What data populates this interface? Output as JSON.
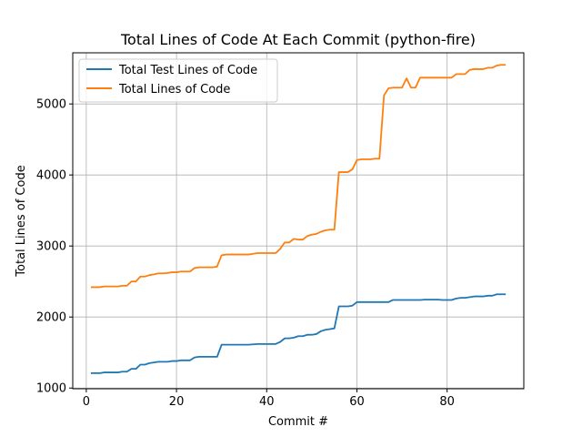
{
  "chart_data": {
    "type": "line",
    "title": "Total Lines of Code At Each Commit (python-fire)",
    "xlabel": "Commit #",
    "ylabel": "Total Lines of Code",
    "xlim": [
      -3,
      97
    ],
    "ylim": [
      990,
      5720
    ],
    "xticks": [
      0,
      20,
      40,
      60,
      80
    ],
    "yticks": [
      1000,
      2000,
      3000,
      4000,
      5000
    ],
    "grid": true,
    "legend": "top-left",
    "x": [
      1,
      2,
      3,
      4,
      5,
      6,
      7,
      8,
      9,
      10,
      11,
      12,
      13,
      14,
      15,
      16,
      17,
      18,
      19,
      20,
      21,
      22,
      23,
      24,
      25,
      26,
      27,
      28,
      29,
      30,
      31,
      32,
      33,
      34,
      35,
      36,
      37,
      38,
      39,
      40,
      41,
      42,
      43,
      44,
      45,
      46,
      47,
      48,
      49,
      50,
      51,
      52,
      53,
      54,
      55,
      56,
      57,
      58,
      59,
      60,
      61,
      62,
      63,
      64,
      65,
      66,
      67,
      68,
      69,
      70,
      71,
      72,
      73,
      74,
      75,
      76,
      77,
      78,
      79,
      80,
      81,
      82,
      83,
      84,
      85,
      86,
      87,
      88,
      89,
      90,
      91,
      92,
      93
    ],
    "series": [
      {
        "name": "Total Test Lines of Code",
        "color": "#1f77b4",
        "values": [
          1210,
          1210,
          1210,
          1220,
          1220,
          1220,
          1220,
          1230,
          1230,
          1270,
          1270,
          1330,
          1330,
          1350,
          1360,
          1370,
          1370,
          1370,
          1380,
          1380,
          1390,
          1390,
          1390,
          1430,
          1440,
          1440,
          1440,
          1440,
          1440,
          1610,
          1610,
          1610,
          1610,
          1610,
          1610,
          1610,
          1615,
          1620,
          1620,
          1620,
          1620,
          1620,
          1650,
          1700,
          1700,
          1710,
          1730,
          1730,
          1750,
          1750,
          1760,
          1800,
          1820,
          1830,
          1840,
          2150,
          2150,
          2150,
          2160,
          2210,
          2210,
          2210,
          2210,
          2210,
          2210,
          2210,
          2210,
          2240,
          2240,
          2240,
          2240,
          2240,
          2240,
          2240,
          2245,
          2245,
          2245,
          2245,
          2240,
          2240,
          2240,
          2260,
          2270,
          2270,
          2280,
          2290,
          2290,
          2290,
          2300,
          2300,
          2320,
          2320,
          2320
        ]
      },
      {
        "name": "Total Lines of Code",
        "color": "#ff7f0e",
        "values": [
          2420,
          2420,
          2420,
          2430,
          2430,
          2430,
          2430,
          2440,
          2440,
          2500,
          2500,
          2570,
          2570,
          2590,
          2600,
          2615,
          2615,
          2620,
          2630,
          2630,
          2640,
          2640,
          2640,
          2690,
          2700,
          2700,
          2700,
          2700,
          2710,
          2870,
          2880,
          2880,
          2880,
          2880,
          2880,
          2880,
          2890,
          2900,
          2900,
          2900,
          2900,
          2900,
          2960,
          3050,
          3050,
          3100,
          3090,
          3090,
          3140,
          3160,
          3170,
          3200,
          3220,
          3230,
          3230,
          4040,
          4040,
          4040,
          4080,
          4210,
          4220,
          4220,
          4220,
          4230,
          4230,
          5120,
          5220,
          5230,
          5230,
          5230,
          5360,
          5230,
          5230,
          5370,
          5370,
          5370,
          5370,
          5370,
          5370,
          5370,
          5370,
          5420,
          5420,
          5420,
          5480,
          5490,
          5490,
          5490,
          5510,
          5510,
          5540,
          5550,
          5550
        ]
      }
    ]
  }
}
